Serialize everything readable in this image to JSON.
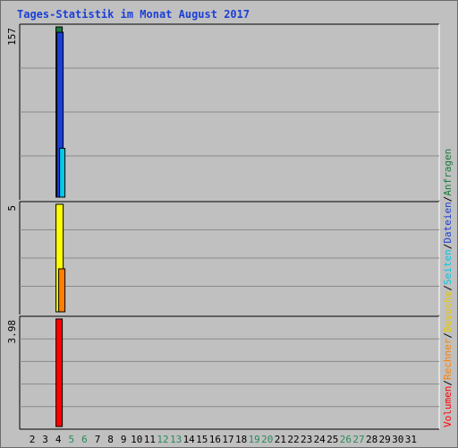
{
  "title": "Tages-Statistik im Monat August 2017",
  "colors": {
    "title": "#1c3fd6",
    "background": "#c0c0c0",
    "grid": "#8a8a8a",
    "weekday_label": "#000000",
    "weekend_label": "#2a8a5a"
  },
  "chart_data": {
    "type": "bar",
    "title": "Tages-Statistik im Monat August 2017",
    "days": [
      "2",
      "3",
      "4",
      "5",
      "6",
      "7",
      "8",
      "9",
      "10",
      "11",
      "12",
      "13",
      "14",
      "15",
      "16",
      "17",
      "18",
      "19",
      "20",
      "21",
      "22",
      "23",
      "24",
      "25",
      "26",
      "27",
      "28",
      "29",
      "30",
      "31"
    ],
    "weekend_days": [
      "5",
      "6",
      "12",
      "13",
      "19",
      "20",
      "26",
      "27"
    ],
    "legend": [
      {
        "name": "Volumen",
        "color": "#ff0000"
      },
      {
        "name": "Rechner",
        "color": "#ff8000"
      },
      {
        "name": "Besuche",
        "color": "#e6c800"
      },
      {
        "name": "Seiten",
        "color": "#00c8e6"
      },
      {
        "name": "Dateien",
        "color": "#1c3fd6"
      },
      {
        "name": "Anfragen",
        "color": "#1a7a3a"
      }
    ],
    "panels": [
      {
        "name": "top",
        "max_label": "157",
        "ymax": 157,
        "series": [
          {
            "name": "Anfragen",
            "color": "#1a7a3a",
            "values": {
              "3": 157
            }
          },
          {
            "name": "Dateien",
            "color": "#1c3fd6",
            "values": {
              "3": 152
            }
          },
          {
            "name": "Seiten",
            "color": "#00c8e6",
            "values": {
              "3": 45
            }
          }
        ]
      },
      {
        "name": "middle",
        "max_label": "5",
        "ymax": 5,
        "series": [
          {
            "name": "Besuche",
            "color": "#ffff00",
            "values": {
              "3": 5
            }
          },
          {
            "name": "Rechner",
            "color": "#ff8000",
            "values": {
              "3": 2
            }
          }
        ]
      },
      {
        "name": "bottom",
        "max_label": "3.98",
        "ymax": 3.98,
        "series": [
          {
            "name": "Volumen",
            "color": "#ff0000",
            "values": {
              "3": 3.98
            }
          }
        ]
      }
    ]
  }
}
